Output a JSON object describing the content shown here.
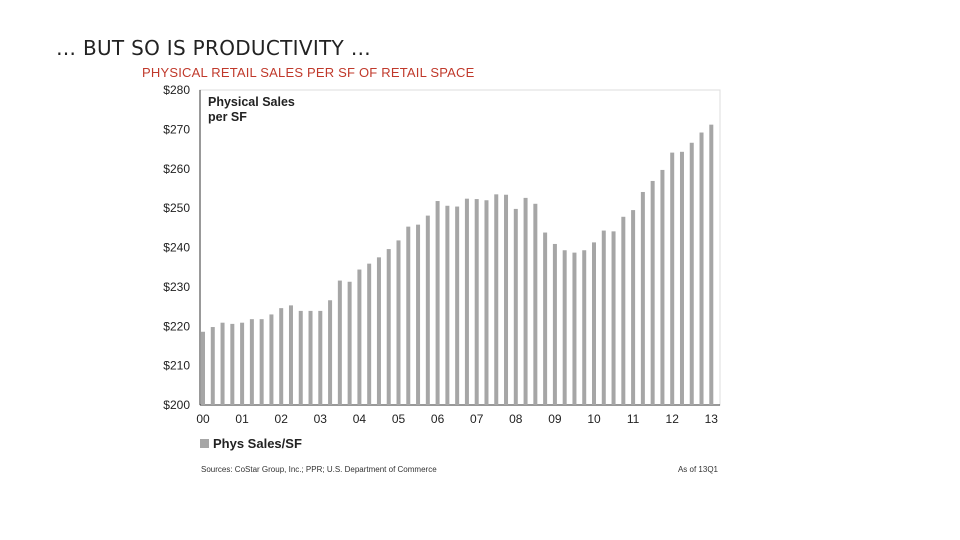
{
  "slide": {
    "title": "… BUT SO IS PRODUCTIVITY …",
    "subtitle": "PHYSICAL RETAIL SALES PER SF OF RETAIL SPACE"
  },
  "chart_data": {
    "type": "bar",
    "title_lines": [
      "Physical Sales",
      "per SF"
    ],
    "ylim": [
      200,
      280
    ],
    "yticks": [
      200,
      210,
      220,
      230,
      240,
      250,
      260,
      270,
      280
    ],
    "ytick_labels": [
      "$200",
      "$210",
      "$220",
      "$230",
      "$240",
      "$250",
      "$260",
      "$270",
      "$280"
    ],
    "xtick_labels": [
      "00",
      "01",
      "02",
      "03",
      "04",
      "05",
      "06",
      "07",
      "08",
      "09",
      "10",
      "11",
      "12",
      "13"
    ],
    "bars_per_year": 4,
    "series": [
      {
        "name": "Phys Sales/SF",
        "color": "#a6a6a6",
        "values": [
          218.6,
          219.8,
          220.9,
          220.6,
          220.9,
          221.8,
          221.8,
          223.0,
          224.6,
          225.3,
          223.9,
          223.9,
          223.9,
          226.6,
          231.6,
          231.3,
          234.4,
          235.9,
          237.5,
          239.6,
          241.8,
          245.3,
          245.8,
          248.1,
          251.8,
          250.6,
          250.4,
          252.4,
          252.3,
          252.0,
          253.5,
          253.4,
          249.8,
          252.6,
          251.1,
          243.8,
          240.9,
          239.3,
          238.7,
          239.3,
          241.3,
          244.3,
          244.1,
          247.8,
          249.5,
          254.1,
          256.9,
          259.7,
          264.1,
          264.3,
          266.6,
          269.2,
          271.2
        ]
      }
    ],
    "legend": {
      "label": "Phys Sales/SF",
      "position": "bottom-left"
    },
    "source": "Sources: CoStar Group, Inc.; PPR; U.S. Department of Commerce",
    "as_of": "As of 13Q1"
  }
}
